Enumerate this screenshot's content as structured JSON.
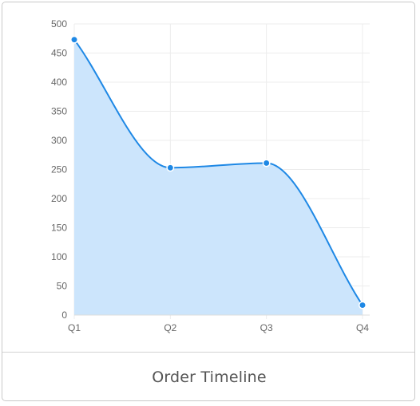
{
  "card": {
    "title": "Order Timeline"
  },
  "colors": {
    "line": "#1e88e5",
    "fill": "#cce5fc",
    "grid": "#ececec",
    "tick_text": "#666666",
    "border": "#c9c9c9"
  },
  "chart_data": {
    "type": "area",
    "title": "Order Timeline",
    "xlabel": "",
    "ylabel": "",
    "categories": [
      "Q1",
      "Q2",
      "Q3",
      "Q4"
    ],
    "values": [
      473,
      253,
      261,
      17
    ],
    "ylim": [
      0,
      500
    ],
    "y_ticks": [
      0,
      50,
      100,
      150,
      200,
      250,
      300,
      350,
      400,
      450,
      500
    ],
    "grid": true,
    "smooth": true,
    "markers": true,
    "legend": "none"
  }
}
